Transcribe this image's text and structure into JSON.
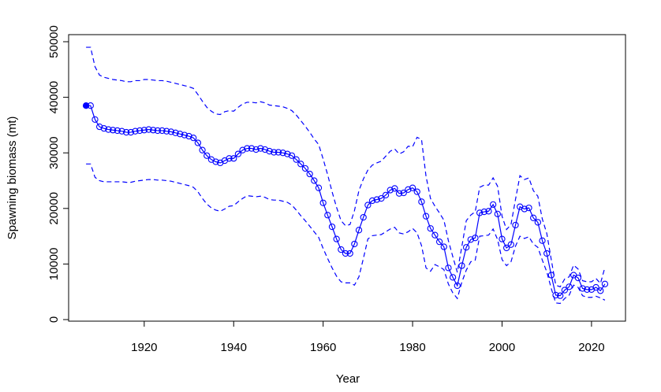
{
  "chart_data": {
    "type": "line",
    "xlabel": "Year",
    "ylabel": "Spawning biomass (mt)",
    "xlim": [
      1903.1,
      2027.6
    ],
    "ylim": [
      -283,
      51275
    ],
    "xticks": [
      1920,
      1940,
      1960,
      1980,
      2000,
      2020
    ],
    "yticks": [
      0,
      10000,
      20000,
      30000,
      40000,
      50000
    ],
    "x": [
      1907,
      1908,
      1909,
      1910,
      1911,
      1912,
      1913,
      1914,
      1915,
      1916,
      1917,
      1918,
      1919,
      1920,
      1921,
      1922,
      1923,
      1924,
      1925,
      1926,
      1927,
      1928,
      1929,
      1930,
      1931,
      1932,
      1933,
      1934,
      1935,
      1936,
      1937,
      1938,
      1939,
      1940,
      1941,
      1942,
      1943,
      1944,
      1945,
      1946,
      1947,
      1948,
      1949,
      1950,
      1951,
      1952,
      1953,
      1954,
      1955,
      1956,
      1957,
      1958,
      1959,
      1960,
      1961,
      1962,
      1963,
      1964,
      1965,
      1966,
      1967,
      1968,
      1969,
      1970,
      1971,
      1972,
      1973,
      1974,
      1975,
      1976,
      1977,
      1978,
      1979,
      1980,
      1981,
      1982,
      1983,
      1984,
      1985,
      1986,
      1987,
      1988,
      1989,
      1990,
      1991,
      1992,
      1993,
      1994,
      1995,
      1996,
      1997,
      1998,
      1999,
      2000,
      2001,
      2002,
      2003,
      2004,
      2005,
      2006,
      2007,
      2008,
      2009,
      2010,
      2011,
      2012,
      2013,
      2014,
      2015,
      2016,
      2017,
      2018,
      2019,
      2020,
      2021,
      2022,
      2023
    ],
    "series": [
      {
        "color": "#0000ff",
        "style": "points-line",
        "filled_first": true,
        "values": [
          38500,
          38500,
          36000,
          34700,
          34400,
          34200,
          34100,
          34000,
          33900,
          33700,
          33700,
          33900,
          34000,
          34100,
          34200,
          34100,
          34000,
          34000,
          33900,
          33800,
          33600,
          33400,
          33200,
          33000,
          32700,
          31800,
          30500,
          29500,
          28800,
          28400,
          28200,
          28600,
          29000,
          29000,
          29800,
          30500,
          30800,
          30800,
          30600,
          30800,
          30600,
          30300,
          30100,
          30100,
          30000,
          29800,
          29500,
          28800,
          28000,
          27200,
          26200,
          25000,
          23700,
          21000,
          18800,
          16700,
          14500,
          12600,
          11900,
          11900,
          13600,
          16100,
          18400,
          20600,
          21400,
          21600,
          21800,
          22400,
          23300,
          23600,
          22700,
          22800,
          23400,
          23700,
          23000,
          21200,
          18600,
          16400,
          15200,
          14000,
          13100,
          9300,
          7600,
          6100,
          9700,
          13000,
          14400,
          14700,
          19200,
          19400,
          19500,
          20700,
          19000,
          14500,
          12900,
          13500,
          17000,
          20300,
          19900,
          20100,
          18300,
          17500,
          14200,
          11900,
          8000,
          4400,
          4300,
          5300,
          5900,
          8000,
          7500,
          5600,
          5400,
          5400,
          5800,
          5200,
          6400
        ]
      },
      {
        "color": "#0000ff",
        "style": "dashed",
        "values": [
          49000,
          49000,
          45500,
          44000,
          43600,
          43400,
          43200,
          43100,
          43000,
          42800,
          42800,
          43000,
          43000,
          43200,
          43200,
          43100,
          43000,
          43000,
          42900,
          42700,
          42500,
          42300,
          42100,
          41900,
          41600,
          40500,
          39300,
          38200,
          37500,
          37000,
          36900,
          37400,
          37600,
          37500,
          38200,
          38800,
          39100,
          39100,
          39000,
          39200,
          39000,
          38600,
          38500,
          38400,
          38300,
          38000,
          37600,
          36800,
          35800,
          34800,
          33700,
          32500,
          31500,
          28900,
          26100,
          23000,
          20200,
          17800,
          16900,
          17100,
          19600,
          23200,
          25300,
          26900,
          27800,
          28200,
          28500,
          29400,
          30300,
          30700,
          29800,
          30200,
          31200,
          31100,
          32800,
          32400,
          25800,
          21800,
          20400,
          19200,
          17900,
          14200,
          11300,
          8500,
          13100,
          17800,
          18800,
          19400,
          23800,
          24200,
          24200,
          25500,
          24000,
          18600,
          16200,
          17100,
          21600,
          25900,
          25200,
          25500,
          23200,
          22200,
          18100,
          15500,
          10800,
          6200,
          5900,
          7300,
          7700,
          9800,
          9100,
          7000,
          6800,
          6800,
          7400,
          6500,
          9400
        ]
      },
      {
        "color": "#0000ff",
        "style": "dashed",
        "values": [
          28000,
          28000,
          25600,
          25000,
          24800,
          24800,
          24800,
          24800,
          24800,
          24700,
          24700,
          24900,
          25000,
          25100,
          25200,
          25200,
          25100,
          25100,
          25000,
          24900,
          24700,
          24500,
          24300,
          24100,
          23800,
          23000,
          21800,
          20800,
          20100,
          19700,
          19500,
          19900,
          20400,
          20500,
          21200,
          21800,
          22300,
          22200,
          22100,
          22200,
          22000,
          21600,
          21500,
          21500,
          21300,
          21100,
          20600,
          19700,
          18700,
          17800,
          16800,
          15800,
          14800,
          12800,
          11000,
          9300,
          7800,
          6800,
          6600,
          6600,
          6200,
          7700,
          11000,
          14500,
          15100,
          15200,
          15300,
          15800,
          16300,
          16600,
          15600,
          15400,
          15800,
          16400,
          15600,
          13300,
          9300,
          8700,
          9900,
          9500,
          9000,
          6400,
          4800,
          3800,
          6700,
          8900,
          10400,
          10700,
          15000,
          15100,
          15200,
          16300,
          14400,
          10800,
          9700,
          10400,
          13200,
          15000,
          14600,
          14900,
          13600,
          13000,
          10700,
          8600,
          5600,
          3000,
          2900,
          3800,
          4400,
          6200,
          5800,
          4300,
          4000,
          4000,
          4200,
          3900,
          3500
        ]
      }
    ]
  }
}
